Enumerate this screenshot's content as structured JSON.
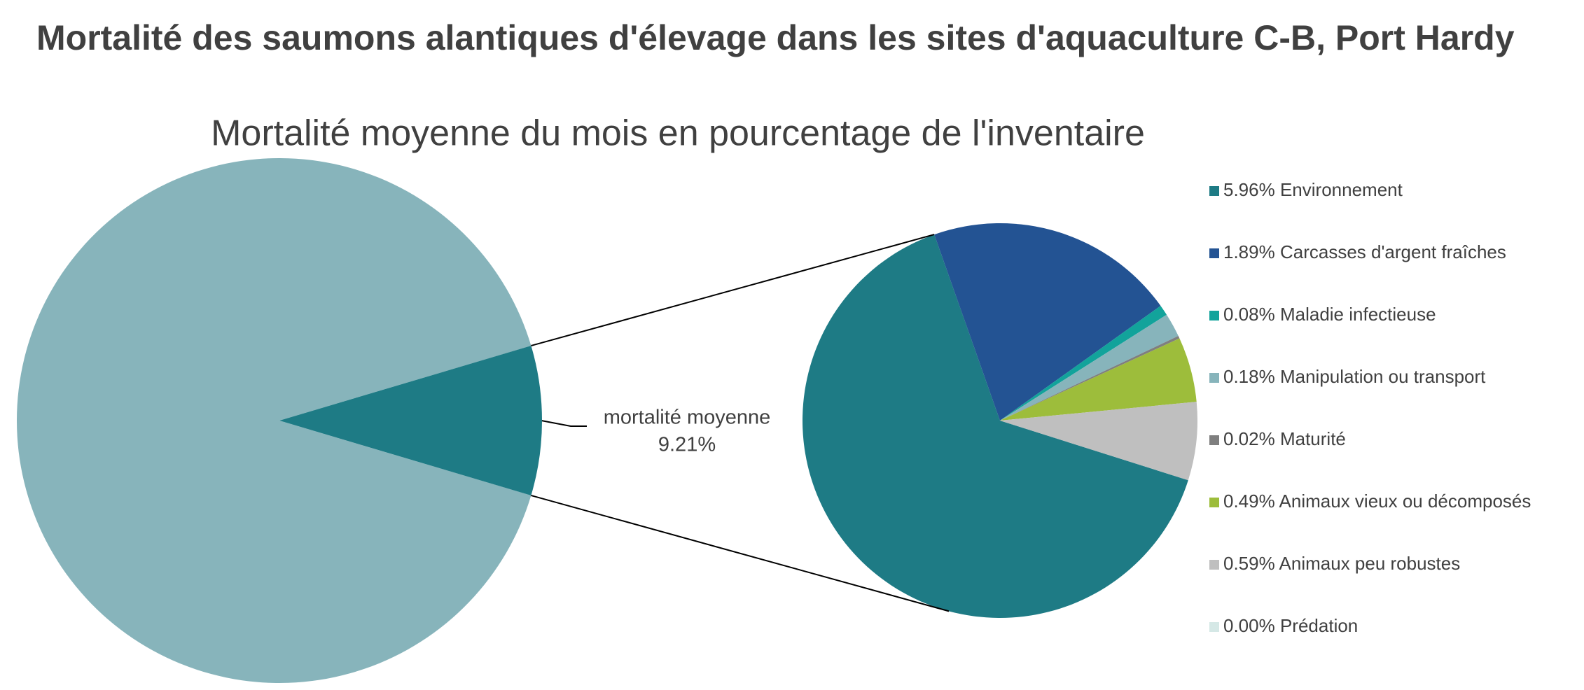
{
  "chart_data": [
    {
      "type": "pie",
      "title": "Mortalité des saumons alantiques d'élevage dans les sites d'aquaculture C-B, Port Hardy",
      "subtitle": "Mortalité moyenne du mois en pourcentage de l'inventaire",
      "categories": [
        null,
        "mortalité moyenne"
      ],
      "values": [
        90.79,
        9.21
      ],
      "value_labels": [
        null,
        "9.21%"
      ],
      "colors": [
        "#87b4bb",
        "#1e7b85"
      ]
    },
    {
      "type": "pie",
      "categories": [
        "Environnement",
        "Carcasses d'argent fraîches",
        "Maladie infectieuse",
        "Manipulation ou transport",
        "Maturité",
        "Animaux vieux ou décomposés",
        "Animaux peu robustes",
        "Prédation"
      ],
      "values": [
        5.96,
        1.89,
        0.08,
        0.18,
        0.02,
        0.49,
        0.59,
        0.0
      ],
      "value_labels": [
        "5.96%",
        "1.89%",
        "0.08%",
        "0.18%",
        "0.02%",
        "0.49%",
        "0.59%",
        "0.00%"
      ],
      "colors": [
        "#1e7b85",
        "#235393",
        "#12a39b",
        "#87b4bb",
        "#7f7f7f",
        "#9dbd3b",
        "#bfbfbf",
        "#d5e8e6"
      ]
    }
  ]
}
